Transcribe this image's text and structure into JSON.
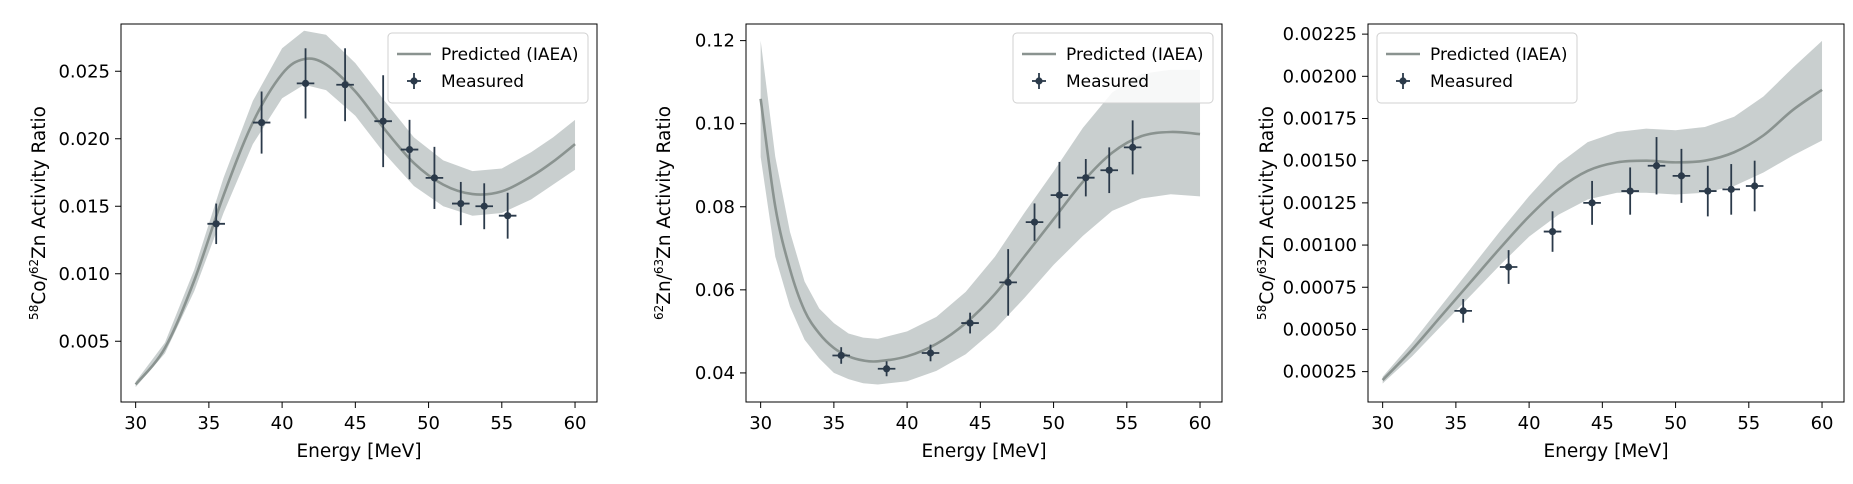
{
  "chart_data": [
    {
      "type": "line",
      "xlabel": "Energy [MeV]",
      "ylabel": {
        "iso1_mass": "58",
        "iso1_elem": "Co/",
        "iso2_mass": "62",
        "iso2_elem": "Zn Activity Ratio"
      },
      "xlim": [
        29,
        61.5
      ],
      "ylim": [
        0.0005,
        0.0285
      ],
      "xticks": [
        30,
        35,
        40,
        45,
        50,
        55,
        60
      ],
      "yticks": [
        0.005,
        0.01,
        0.015,
        0.02,
        0.025
      ],
      "ytick_labels": [
        "0.005",
        "0.010",
        "0.015",
        "0.020",
        "0.025"
      ],
      "legend_position": "top-right",
      "series": [
        {
          "name": "Predicted (IAEA)",
          "kind": "line-with-band",
          "color": "#8a9390",
          "band_color": "#c9cfcf",
          "x": [
            30,
            32,
            34,
            36,
            38,
            40,
            41.5,
            43,
            45,
            47,
            49,
            51,
            53,
            55,
            57,
            58.5,
            60
          ],
          "y": [
            0.0018,
            0.0045,
            0.0095,
            0.0158,
            0.0212,
            0.0248,
            0.0259,
            0.0255,
            0.0235,
            0.0207,
            0.0182,
            0.0166,
            0.0159,
            0.0161,
            0.0172,
            0.0183,
            0.0196
          ],
          "lower": [
            0.0016,
            0.0041,
            0.0087,
            0.0145,
            0.0196,
            0.023,
            0.024,
            0.0236,
            0.0217,
            0.0189,
            0.0165,
            0.015,
            0.0143,
            0.0145,
            0.0155,
            0.0166,
            0.0177
          ],
          "upper": [
            0.002,
            0.0049,
            0.0103,
            0.0171,
            0.0228,
            0.0267,
            0.028,
            0.0277,
            0.0256,
            0.0228,
            0.0201,
            0.0184,
            0.0176,
            0.0178,
            0.019,
            0.0201,
            0.0214
          ]
        },
        {
          "name": "Measured",
          "kind": "errorbar",
          "color": "#2b3a4a",
          "x": [
            35.5,
            38.6,
            41.6,
            44.3,
            46.9,
            48.7,
            50.4,
            52.2,
            53.8,
            55.4
          ],
          "y": [
            0.0137,
            0.0212,
            0.0241,
            0.024,
            0.0213,
            0.0192,
            0.0171,
            0.0152,
            0.015,
            0.0143
          ],
          "yerr": [
            0.0015,
            0.0023,
            0.0026,
            0.0027,
            0.0034,
            0.0022,
            0.0023,
            0.0016,
            0.0017,
            0.0017
          ],
          "xerr": [
            0.6,
            0.6,
            0.6,
            0.6,
            0.6,
            0.6,
            0.6,
            0.6,
            0.6,
            0.6
          ]
        }
      ]
    },
    {
      "type": "line",
      "xlabel": "Energy [MeV]",
      "ylabel": {
        "iso1_mass": "62",
        "iso1_elem": "Zn/",
        "iso2_mass": "63",
        "iso2_elem": "Zn Activity Ratio"
      },
      "xlim": [
        29,
        61.5
      ],
      "ylim": [
        0.033,
        0.124
      ],
      "xticks": [
        30,
        35,
        40,
        45,
        50,
        55,
        60
      ],
      "yticks": [
        0.04,
        0.06,
        0.08,
        0.1,
        0.12
      ],
      "ytick_labels": [
        "0.04",
        "0.06",
        "0.08",
        "0.10",
        "0.12"
      ],
      "legend_position": "top-right",
      "series": [
        {
          "name": "Predicted (IAEA)",
          "kind": "line-with-band",
          "color": "#8a9390",
          "band_color": "#c9cfcf",
          "x": [
            30,
            31,
            32,
            33,
            34,
            35,
            36,
            37,
            38,
            40,
            42,
            44,
            46,
            48,
            50,
            52,
            54,
            56,
            58,
            60
          ],
          "y": [
            0.106,
            0.08,
            0.065,
            0.055,
            0.0495,
            0.046,
            0.044,
            0.043,
            0.0428,
            0.044,
            0.047,
            0.052,
            0.059,
            0.068,
            0.077,
            0.086,
            0.093,
            0.097,
            0.098,
            0.0975
          ],
          "lower": [
            0.092,
            0.068,
            0.056,
            0.048,
            0.0435,
            0.04,
            0.0385,
            0.0375,
            0.0372,
            0.038,
            0.0405,
            0.0445,
            0.0505,
            0.058,
            0.066,
            0.073,
            0.079,
            0.082,
            0.083,
            0.0825
          ],
          "upper": [
            0.12,
            0.092,
            0.074,
            0.062,
            0.0555,
            0.052,
            0.0495,
            0.0485,
            0.0482,
            0.05,
            0.0535,
            0.0595,
            0.068,
            0.0785,
            0.0885,
            0.099,
            0.1075,
            0.112,
            0.113,
            0.113
          ]
        },
        {
          "name": "Measured",
          "kind": "errorbar",
          "color": "#2b3a4a",
          "x": [
            35.5,
            38.6,
            41.6,
            44.3,
            46.9,
            48.7,
            50.4,
            52.2,
            53.8,
            55.4
          ],
          "y": [
            0.0442,
            0.041,
            0.0448,
            0.052,
            0.0618,
            0.0763,
            0.0828,
            0.087,
            0.0888,
            0.0943
          ],
          "yerr": [
            0.002,
            0.0018,
            0.002,
            0.0025,
            0.008,
            0.0045,
            0.008,
            0.0045,
            0.0055,
            0.0065
          ],
          "xerr": [
            0.6,
            0.6,
            0.6,
            0.6,
            0.6,
            0.6,
            0.6,
            0.6,
            0.6,
            0.6
          ]
        }
      ]
    },
    {
      "type": "line",
      "xlabel": "Energy [MeV]",
      "ylabel": {
        "iso1_mass": "58",
        "iso1_elem": "Co/",
        "iso2_mass": "63",
        "iso2_elem": "Zn Activity Ratio"
      },
      "xlim": [
        29,
        61.5
      ],
      "ylim": [
        7e-05,
        0.00231
      ],
      "xticks": [
        30,
        35,
        40,
        45,
        50,
        55,
        60
      ],
      "yticks": [
        0.00025,
        0.0005,
        0.00075,
        0.001,
        0.00125,
        0.0015,
        0.00175,
        0.002,
        0.00225
      ],
      "ytick_labels": [
        "0.00025",
        "0.00050",
        "0.00075",
        "0.00100",
        "0.00125",
        "0.00150",
        "0.00175",
        "0.00200",
        "0.00225"
      ],
      "legend_position": "top-left",
      "series": [
        {
          "name": "Predicted (IAEA)",
          "kind": "line-with-band",
          "color": "#8a9390",
          "band_color": "#c9cfcf",
          "x": [
            30,
            32,
            34,
            36,
            38,
            40,
            42,
            44,
            46,
            48,
            50,
            52,
            54,
            56,
            58,
            60
          ],
          "y": [
            0.0002,
            0.00038,
            0.00058,
            0.00078,
            0.00098,
            0.00117,
            0.00133,
            0.00144,
            0.00149,
            0.0015,
            0.00149,
            0.0015,
            0.00155,
            0.00165,
            0.0018,
            0.00192
          ],
          "lower": [
            0.00018,
            0.00034,
            0.00052,
            0.0007,
            0.00088,
            0.00105,
            0.00118,
            0.00127,
            0.00131,
            0.00131,
            0.0013,
            0.00131,
            0.00135,
            0.00143,
            0.00153,
            0.00162
          ],
          "upper": [
            0.00022,
            0.00042,
            0.00064,
            0.00086,
            0.00108,
            0.00129,
            0.00148,
            0.00161,
            0.00167,
            0.00169,
            0.00168,
            0.0017,
            0.00176,
            0.00188,
            0.00205,
            0.00221
          ]
        },
        {
          "name": "Measured",
          "kind": "errorbar",
          "color": "#2b3a4a",
          "x": [
            35.5,
            38.6,
            41.6,
            44.3,
            46.9,
            48.7,
            50.4,
            52.2,
            53.8,
            55.4
          ],
          "y": [
            0.00061,
            0.00087,
            0.00108,
            0.00125,
            0.00132,
            0.00147,
            0.00141,
            0.00132,
            0.00133,
            0.00135
          ],
          "yerr": [
            7e-05,
            0.0001,
            0.00012,
            0.00013,
            0.00014,
            0.00017,
            0.00016,
            0.00015,
            0.00015,
            0.00015
          ],
          "xerr": [
            0.6,
            0.6,
            0.6,
            0.6,
            0.6,
            0.6,
            0.6,
            0.6,
            0.6,
            0.6
          ]
        }
      ]
    }
  ]
}
